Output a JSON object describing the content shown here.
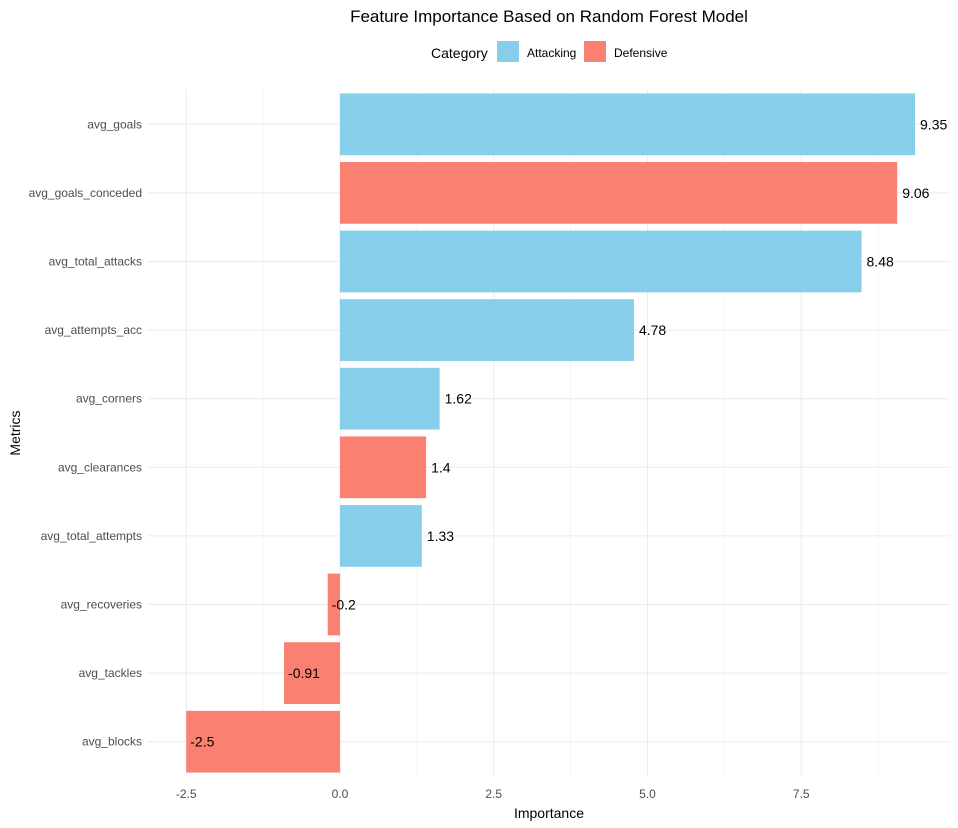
{
  "chart_data": {
    "type": "bar",
    "orientation": "horizontal",
    "title": "Feature Importance Based on Random Forest Model",
    "xlabel": "Importance",
    "ylabel": "Metrics",
    "xlim": [
      -2.5,
      9.35
    ],
    "x_ticks": [
      "-2.5",
      "0.0",
      "2.5",
      "5.0",
      "7.5"
    ],
    "grid": true,
    "legend": {
      "title": "Category",
      "position": "top",
      "entries": [
        {
          "name": "Attacking",
          "color": "#87CEEB"
        },
        {
          "name": "Defensive",
          "color": "#FA8072"
        }
      ]
    },
    "categories": [
      "avg_goals",
      "avg_goals_conceded",
      "avg_total_attacks",
      "avg_attempts_acc",
      "avg_corners",
      "avg_clearances",
      "avg_total_attempts",
      "avg_recoveries",
      "avg_tackles",
      "avg_blocks"
    ],
    "values": [
      9.35,
      9.06,
      8.48,
      4.78,
      1.62,
      1.4,
      1.33,
      -0.2,
      -0.91,
      -2.5
    ],
    "value_labels": [
      "9.35",
      "9.06",
      "8.48",
      "4.78",
      "1.62",
      "1.4",
      "1.33",
      "-0.2",
      "-0.91",
      "-2.5"
    ],
    "groups": [
      "Attacking",
      "Defensive",
      "Attacking",
      "Attacking",
      "Attacking",
      "Defensive",
      "Attacking",
      "Defensive",
      "Defensive",
      "Defensive"
    ]
  }
}
